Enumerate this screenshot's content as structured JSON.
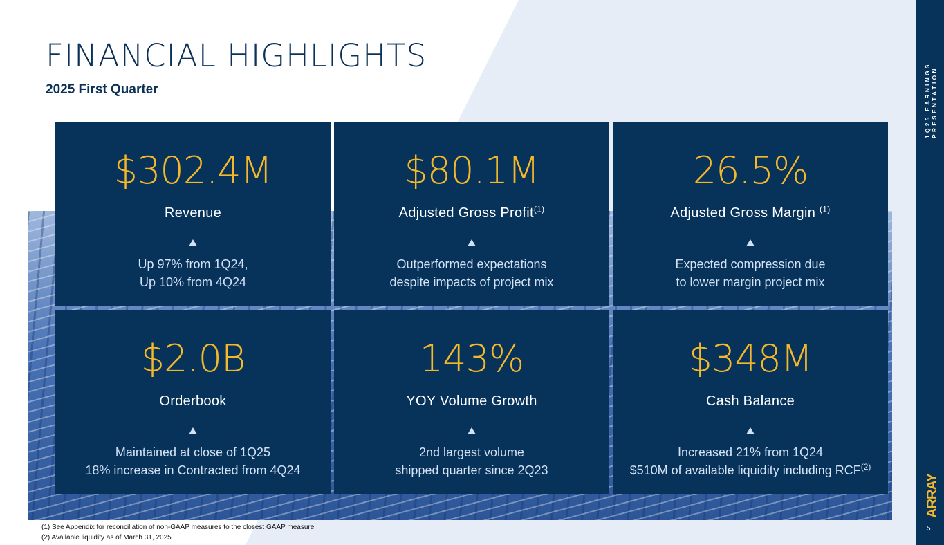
{
  "header": {
    "title": "FINANCIAL HIGHLIGHTS",
    "subtitle": "2025 First Quarter"
  },
  "cards": [
    {
      "metric": "$302.4M",
      "label": "Revenue",
      "label_sup": "",
      "desc_line1": "Up 97% from 1Q24,",
      "desc_line2": "Up 10% from 4Q24",
      "desc_sup": ""
    },
    {
      "metric": "$80.1M",
      "label": "Adjusted Gross Profit",
      "label_sup": "(1)",
      "desc_line1": "Outperformed expectations",
      "desc_line2": "despite impacts of project mix",
      "desc_sup": ""
    },
    {
      "metric": "26.5%",
      "label": "Adjusted Gross Margin ",
      "label_sup": "(1)",
      "desc_line1": "Expected compression due",
      "desc_line2": "to lower margin project mix",
      "desc_sup": ""
    },
    {
      "metric": "$2.0B",
      "label": "Orderbook",
      "label_sup": "",
      "desc_line1": "Maintained at close of 1Q25",
      "desc_line2": "18% increase in Contracted from 4Q24",
      "desc_sup": ""
    },
    {
      "metric": "143%",
      "label": "YOY Volume Growth",
      "label_sup": "",
      "desc_line1": "2nd largest volume",
      "desc_line2": "shipped quarter since 2Q23",
      "desc_sup": ""
    },
    {
      "metric": "$348M",
      "label": "Cash Balance",
      "label_sup": "",
      "desc_line1": "Increased 21% from 1Q24",
      "desc_line2": "$510M of available liquidity including RCF",
      "desc_sup": "(2)"
    }
  ],
  "sidebar": {
    "presentation_label": "1Q25 EARNINGS PRESENTATION",
    "logo_text": "ARRAY",
    "page_number": "5"
  },
  "footnotes": [
    "(1) See Appendix for reconciliation of non-GAAP measures to the closest GAAP measure",
    "(2) Available liquidity as of March 31, 2025"
  ],
  "colors": {
    "navy": "#07325a",
    "accent": "#f6b82b",
    "title": "#0c3157"
  }
}
